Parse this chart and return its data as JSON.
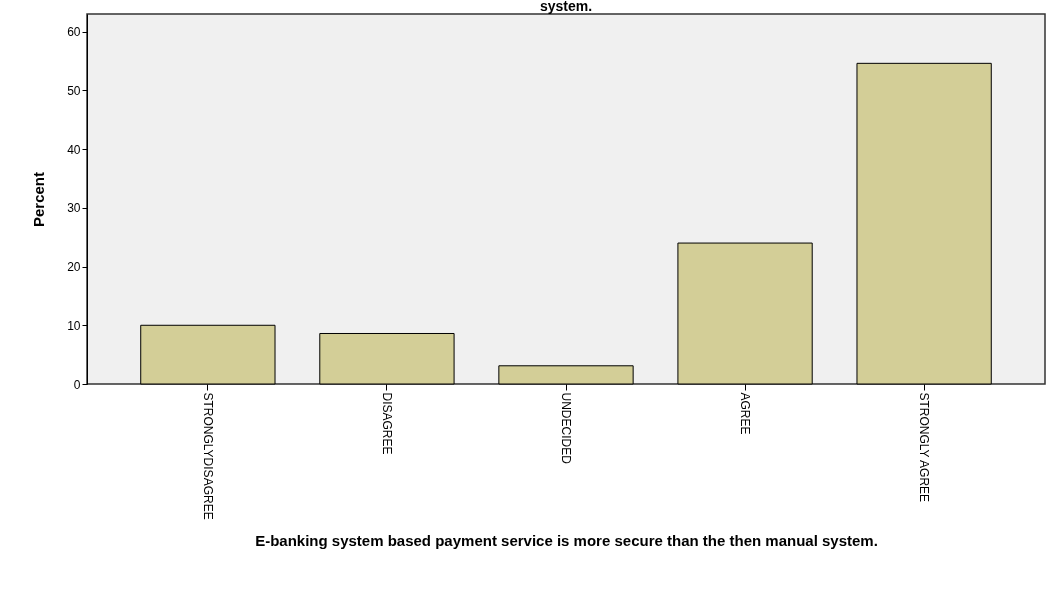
{
  "chart_data": {
    "type": "bar",
    "title": "system.",
    "xlabel": "E-banking system based payment service is more secure than the then manual system.",
    "ylabel": "Percent",
    "categories": [
      "STRONGLYDISAGREE",
      "DISAGREE",
      "UNDECIDED",
      "AGREE",
      "STRONGLY AGREE"
    ],
    "values": [
      10,
      8.6,
      3.1,
      24,
      54.6
    ],
    "color": "#d3ce97",
    "ylim": [
      0,
      63
    ],
    "yticks": [
      0,
      10,
      20,
      30,
      40,
      50,
      60
    ],
    "grid": false
  }
}
